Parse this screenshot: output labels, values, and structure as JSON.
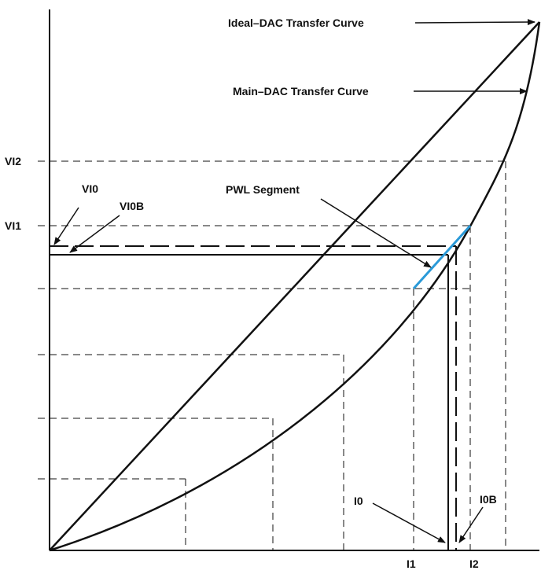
{
  "labels": {
    "ideal_curve": "Ideal–DAC Transfer Curve",
    "main_curve": "Main–DAC Transfer Curve",
    "pwl_segment": "PWL Segment",
    "vi2": "VI2",
    "vi1": "VI1",
    "vi0": "VI0",
    "vi0b": "VI0B",
    "i0": "I0",
    "i0b": "I0B",
    "i1": "I1",
    "i2": "I2"
  },
  "colors": {
    "line": "#111111",
    "pwl_segment": "#2a9ad8",
    "background": "#ffffff"
  }
}
